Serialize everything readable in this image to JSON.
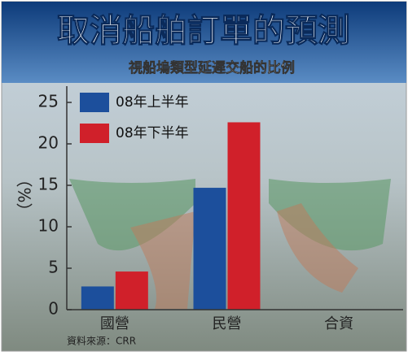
{
  "chart_data": {
    "type": "bar",
    "title": "取消船舶訂單的預測",
    "subtitle": "視船塢類型延遲交船的比例",
    "y_label": "（%）",
    "source": "資料來源：CRR",
    "categories": [
      "國營",
      "民營",
      "合資"
    ],
    "series": [
      {
        "name": "08年上半年",
        "color": "#1c4f9c",
        "values": [
          2.8,
          14.7,
          null
        ]
      },
      {
        "name": "08年下半年",
        "color": "#d0202a",
        "values": [
          4.6,
          22.6,
          null
        ]
      }
    ],
    "ylim": [
      0,
      25
    ],
    "yticks": [
      0,
      5,
      10,
      15,
      20,
      25
    ]
  }
}
